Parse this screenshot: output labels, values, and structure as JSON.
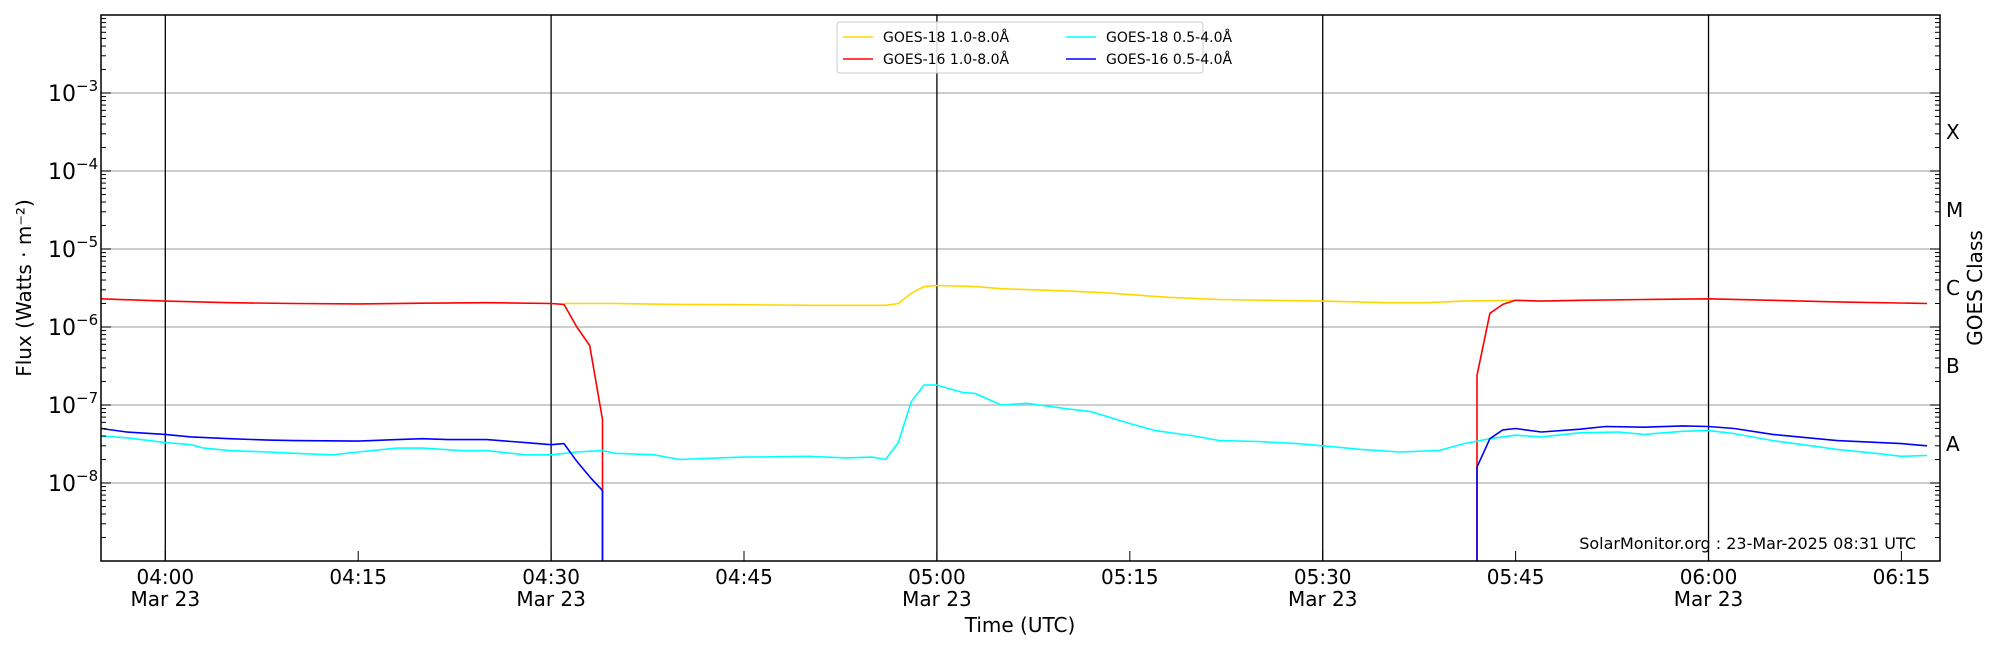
{
  "chart_data": {
    "type": "line",
    "title": "",
    "xlabel": "Time (UTC)",
    "ylabel": "Flux (Watts · m⁻²)",
    "ylabel_right": "GOES Class",
    "yscale": "log",
    "ylim": [
      1e-09,
      0.01
    ],
    "xlim": [
      "03:55",
      "06:18"
    ],
    "date_label": "Mar 23",
    "x_ticks": [
      {
        "t": "04:00",
        "label": "04:00",
        "date": true
      },
      {
        "t": "04:15",
        "label": "04:15",
        "date": false
      },
      {
        "t": "04:30",
        "label": "04:30",
        "date": true
      },
      {
        "t": "04:45",
        "label": "04:45",
        "date": false
      },
      {
        "t": "05:00",
        "label": "05:00",
        "date": true
      },
      {
        "t": "05:15",
        "label": "05:15",
        "date": false
      },
      {
        "t": "05:30",
        "label": "05:30",
        "date": true
      },
      {
        "t": "05:45",
        "label": "05:45",
        "date": false
      },
      {
        "t": "06:00",
        "label": "06:00",
        "date": true
      },
      {
        "t": "06:15",
        "label": "06:15",
        "date": false
      }
    ],
    "y_ticks": [
      {
        "exp": -3,
        "base": "10",
        "sup": "−3"
      },
      {
        "exp": -4,
        "base": "10",
        "sup": "−4"
      },
      {
        "exp": -5,
        "base": "10",
        "sup": "−5"
      },
      {
        "exp": -6,
        "base": "10",
        "sup": "−6"
      },
      {
        "exp": -7,
        "base": "10",
        "sup": "−7"
      },
      {
        "exp": -8,
        "base": "10",
        "sup": "−8"
      }
    ],
    "goes_classes": [
      {
        "label": "X",
        "exp": -3.5
      },
      {
        "label": "M",
        "exp": -4.5
      },
      {
        "label": "C",
        "exp": -5.5
      },
      {
        "label": "B",
        "exp": -6.5
      },
      {
        "label": "A",
        "exp": -7.5
      }
    ],
    "grid": true,
    "vertical_lines": [
      "04:00",
      "04:30",
      "05:00",
      "05:30",
      "06:00"
    ],
    "legend_position": "top-center",
    "watermark": "SolarMonitor.org : 23-Mar-2025 08:31 UTC",
    "series": [
      {
        "name": "GOES-18 1.0-8.0Å",
        "color": "#ffd700",
        "legend_row": 0,
        "legend_col": 0,
        "points": [
          [
            "04:31",
            2e-06
          ],
          [
            "04:35",
            2e-06
          ],
          [
            "04:40",
            1.95e-06
          ],
          [
            "04:45",
            1.93e-06
          ],
          [
            "04:50",
            1.9e-06
          ],
          [
            "04:56",
            1.9e-06
          ],
          [
            "04:57",
            2e-06
          ],
          [
            "04:58",
            2.7e-06
          ],
          [
            "04:59",
            3.3e-06
          ],
          [
            "05:00",
            3.4e-06
          ],
          [
            "05:03",
            3.3e-06
          ],
          [
            "05:05",
            3.1e-06
          ],
          [
            "05:10",
            2.9e-06
          ],
          [
            "05:13",
            2.75e-06
          ],
          [
            "05:15",
            2.6e-06
          ],
          [
            "05:18",
            2.4e-06
          ],
          [
            "05:22",
            2.25e-06
          ],
          [
            "05:30",
            2.15e-06
          ],
          [
            "05:35",
            2.05e-06
          ],
          [
            "05:38",
            2.05e-06
          ],
          [
            "05:41",
            2.15e-06
          ],
          [
            "05:45",
            2.2e-06
          ]
        ]
      },
      {
        "name": "GOES-16 1.0-8.0Å",
        "color": "#ff0000",
        "legend_row": 1,
        "legend_col": 0,
        "points": [
          [
            "03:55",
            2.3e-06
          ],
          [
            "04:00",
            2.15e-06
          ],
          [
            "04:05",
            2.05e-06
          ],
          [
            "04:10",
            2e-06
          ],
          [
            "04:15",
            1.98e-06
          ],
          [
            "04:20",
            2.02e-06
          ],
          [
            "04:25",
            2.05e-06
          ],
          [
            "04:30",
            2e-06
          ],
          [
            "04:31",
            1.95e-06
          ],
          [
            "04:32",
            1e-06
          ],
          [
            "04:33",
            5.8e-07
          ],
          [
            "04:34",
            6.5e-08
          ],
          [
            "04:34",
            1e-10
          ],
          null,
          [
            "05:42",
            1e-10
          ],
          [
            "05:42",
            2.4e-07
          ],
          [
            "05:43",
            1.5e-06
          ],
          [
            "05:44",
            1.95e-06
          ],
          [
            "05:45",
            2.2e-06
          ],
          [
            "05:47",
            2.15e-06
          ],
          [
            "05:50",
            2.2e-06
          ],
          [
            "05:55",
            2.25e-06
          ],
          [
            "06:00",
            2.3e-06
          ],
          [
            "06:05",
            2.2e-06
          ],
          [
            "06:10",
            2.1e-06
          ],
          [
            "06:17",
            2e-06
          ]
        ]
      },
      {
        "name": "GOES-18 0.5-4.0Å",
        "color": "#00ffff",
        "legend_row": 0,
        "legend_col": 1,
        "points": [
          [
            "03:55",
            4e-08
          ],
          [
            "03:57",
            3.8e-08
          ],
          [
            "04:00",
            3.3e-08
          ],
          [
            "04:02",
            3.1e-08
          ],
          [
            "04:03",
            2.8e-08
          ],
          [
            "04:05",
            2.6e-08
          ],
          [
            "04:08",
            2.5e-08
          ],
          [
            "04:10",
            2.4e-08
          ],
          [
            "04:13",
            2.3e-08
          ],
          [
            "04:15",
            2.5e-08
          ],
          [
            "04:18",
            2.8e-08
          ],
          [
            "04:20",
            2.8e-08
          ],
          [
            "04:23",
            2.6e-08
          ],
          [
            "04:25",
            2.6e-08
          ],
          [
            "04:28",
            2.3e-08
          ],
          [
            "04:30",
            2.3e-08
          ],
          [
            "04:32",
            2.5e-08
          ],
          [
            "04:34",
            2.6e-08
          ],
          [
            "04:35",
            2.4e-08
          ],
          [
            "04:38",
            2.3e-08
          ],
          [
            "04:40",
            2e-08
          ],
          [
            "04:43",
            2.1e-08
          ],
          [
            "04:45",
            2.15e-08
          ],
          [
            "04:50",
            2.2e-08
          ],
          [
            "04:53",
            2.1e-08
          ],
          [
            "04:55",
            2.15e-08
          ],
          [
            "04:56",
            2e-08
          ],
          [
            "04:57",
            3.3e-08
          ],
          [
            "04:58",
            1.1e-07
          ],
          [
            "04:59",
            1.8e-07
          ],
          [
            "05:00",
            1.8e-07
          ],
          [
            "05:02",
            1.45e-07
          ],
          [
            "05:03",
            1.4e-07
          ],
          [
            "05:05",
            1e-07
          ],
          [
            "05:07",
            1.05e-07
          ],
          [
            "05:10",
            9e-08
          ],
          [
            "05:12",
            8.2e-08
          ],
          [
            "05:15",
            5.8e-08
          ],
          [
            "05:17",
            4.7e-08
          ],
          [
            "05:20",
            4e-08
          ],
          [
            "05:22",
            3.5e-08
          ],
          [
            "05:25",
            3.4e-08
          ],
          [
            "05:28",
            3.2e-08
          ],
          [
            "05:30",
            3e-08
          ],
          [
            "05:33",
            2.7e-08
          ],
          [
            "05:36",
            2.5e-08
          ],
          [
            "05:39",
            2.6e-08
          ],
          [
            "05:41",
            3.2e-08
          ],
          [
            "05:43",
            3.7e-08
          ],
          [
            "05:45",
            4.1e-08
          ],
          [
            "05:47",
            3.9e-08
          ],
          [
            "05:50",
            4.4e-08
          ],
          [
            "05:53",
            4.5e-08
          ],
          [
            "05:55",
            4.2e-08
          ],
          [
            "05:58",
            4.6e-08
          ],
          [
            "06:00",
            4.7e-08
          ],
          [
            "06:02",
            4.3e-08
          ],
          [
            "06:05",
            3.5e-08
          ],
          [
            "06:08",
            3e-08
          ],
          [
            "06:10",
            2.7e-08
          ],
          [
            "06:13",
            2.4e-08
          ],
          [
            "06:15",
            2.2e-08
          ],
          [
            "06:17",
            2.25e-08
          ]
        ]
      },
      {
        "name": "GOES-16 0.5-4.0Å",
        "color": "#0000ff",
        "legend_row": 1,
        "legend_col": 1,
        "points": [
          [
            "03:55",
            5e-08
          ],
          [
            "03:57",
            4.5e-08
          ],
          [
            "04:00",
            4.2e-08
          ],
          [
            "04:02",
            3.9e-08
          ],
          [
            "04:05",
            3.7e-08
          ],
          [
            "04:08",
            3.55e-08
          ],
          [
            "04:10",
            3.5e-08
          ],
          [
            "04:15",
            3.45e-08
          ],
          [
            "04:18",
            3.6e-08
          ],
          [
            "04:20",
            3.7e-08
          ],
          [
            "04:22",
            3.6e-08
          ],
          [
            "04:25",
            3.6e-08
          ],
          [
            "04:28",
            3.3e-08
          ],
          [
            "04:30",
            3.1e-08
          ],
          [
            "04:31",
            3.2e-08
          ],
          [
            "04:32",
            1.9e-08
          ],
          [
            "04:33",
            1.2e-08
          ],
          [
            "04:34",
            8e-09
          ],
          [
            "04:34",
            1e-10
          ],
          null,
          [
            "05:42",
            1e-10
          ],
          [
            "05:42",
            1.6e-08
          ],
          [
            "05:43",
            3.7e-08
          ],
          [
            "05:44",
            4.8e-08
          ],
          [
            "05:45",
            5e-08
          ],
          [
            "05:47",
            4.5e-08
          ],
          [
            "05:50",
            4.9e-08
          ],
          [
            "05:52",
            5.3e-08
          ],
          [
            "05:55",
            5.2e-08
          ],
          [
            "05:58",
            5.4e-08
          ],
          [
            "06:00",
            5.3e-08
          ],
          [
            "06:02",
            5e-08
          ],
          [
            "06:05",
            4.2e-08
          ],
          [
            "06:10",
            3.5e-08
          ],
          [
            "06:15",
            3.2e-08
          ],
          [
            "06:17",
            3e-08
          ]
        ]
      }
    ]
  }
}
